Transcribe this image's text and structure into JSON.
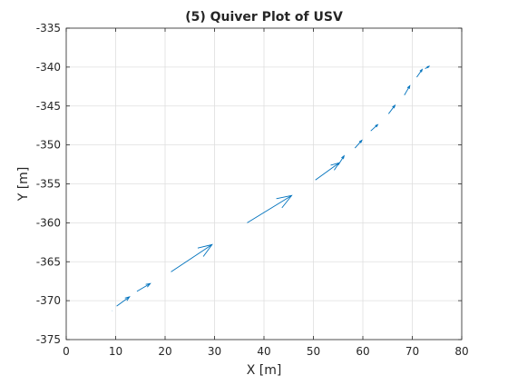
{
  "chart_data": {
    "type": "quiver",
    "title": "(5) Quiver Plot of USV",
    "xlabel": "X [m]",
    "ylabel": "Y [m]",
    "xlim": [
      0,
      80
    ],
    "ylim": [
      -375,
      -335
    ],
    "xticks": [
      0,
      10,
      20,
      30,
      40,
      50,
      60,
      70,
      80
    ],
    "yticks": [
      -375,
      -370,
      -365,
      -360,
      -355,
      -350,
      -345,
      -340,
      -335
    ],
    "xtick_labels": [
      "0",
      "10",
      "20",
      "30",
      "40",
      "50",
      "60",
      "70",
      "80"
    ],
    "ytick_labels": [
      "-375",
      "-370",
      "-365",
      "-360",
      "-355",
      "-350",
      "-345",
      "-340",
      "-335"
    ],
    "grid": true,
    "box": true,
    "arrow_color": "#0072bd",
    "vectors": [
      {
        "x": 9.3,
        "y": -371.3,
        "u": 0.05,
        "v": 0.02
      },
      {
        "x": 10.2,
        "y": -370.7,
        "u": 2.6,
        "v": 1.2
      },
      {
        "x": 14.3,
        "y": -368.8,
        "u": 2.7,
        "v": 1.0
      },
      {
        "x": 21.2,
        "y": -366.3,
        "u": 8.3,
        "v": 3.5
      },
      {
        "x": 36.6,
        "y": -360.0,
        "u": 9.0,
        "v": 3.5
      },
      {
        "x": 50.4,
        "y": -354.5,
        "u": 4.8,
        "v": 2.2
      },
      {
        "x": 55.0,
        "y": -352.6,
        "u": 1.2,
        "v": 1.2
      },
      {
        "x": 58.4,
        "y": -350.4,
        "u": 1.4,
        "v": 1.0
      },
      {
        "x": 61.6,
        "y": -348.2,
        "u": 1.4,
        "v": 0.8
      },
      {
        "x": 65.2,
        "y": -346.0,
        "u": 1.3,
        "v": 1.1
      },
      {
        "x": 68.4,
        "y": -343.6,
        "u": 1.1,
        "v": 1.2
      },
      {
        "x": 70.9,
        "y": -341.3,
        "u": 1.1,
        "v": 1.0
      },
      {
        "x": 72.6,
        "y": -340.2,
        "u": 0.8,
        "v": 0.3
      }
    ]
  }
}
